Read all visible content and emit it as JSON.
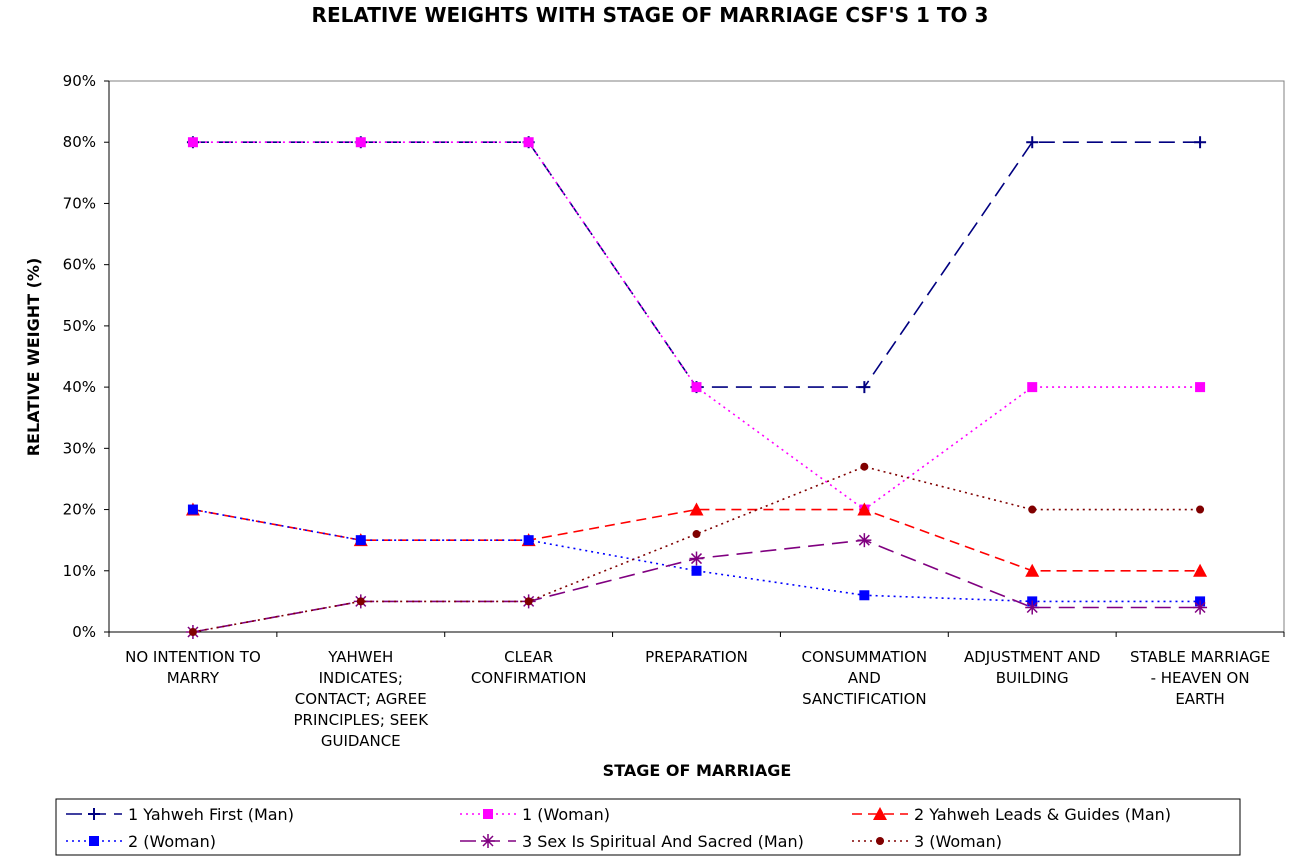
{
  "chart_data": {
    "type": "line",
    "title": "RELATIVE WEIGHTS WITH STAGE OF MARRIAGE CSF'S 1 TO 3",
    "xlabel": "STAGE OF MARRIAGE",
    "ylabel": "RELATIVE WEIGHT (%)",
    "ylim": [
      0,
      90
    ],
    "yticks": [
      "0%",
      "10%",
      "20%",
      "30%",
      "40%",
      "50%",
      "60%",
      "70%",
      "80%",
      "90%"
    ],
    "grid": false,
    "legend_position": "bottom",
    "categories": [
      [
        "NO INTENTION TO",
        "MARRY"
      ],
      [
        "YAHWEH",
        "INDICATES;",
        "CONTACT; AGREE",
        "PRINCIPLES; SEEK",
        "GUIDANCE"
      ],
      [
        "CLEAR",
        "CONFIRMATION"
      ],
      [
        "PREPARATION"
      ],
      [
        "CONSUMMATION",
        "AND",
        "SANCTIFICATION"
      ],
      [
        "ADJUSTMENT AND",
        "BUILDING"
      ],
      [
        "STABLE MARRIAGE",
        "- HEAVEN ON",
        "EARTH"
      ]
    ],
    "series": [
      {
        "name": "1 Yahweh First (Man)",
        "values": [
          80,
          80,
          80,
          40,
          40,
          80,
          80
        ],
        "color": "#000080",
        "dash": "long-dash",
        "marker": "plus"
      },
      {
        "name": "1 (Woman)",
        "values": [
          80,
          80,
          80,
          40,
          20,
          40,
          40
        ],
        "color": "#ff00ff",
        "dash": "dotted",
        "marker": "square"
      },
      {
        "name": "2 Yahweh Leads & Guides (Man)",
        "values": [
          20,
          15,
          15,
          20,
          20,
          10,
          10
        ],
        "color": "#ff0000",
        "dash": "dash",
        "marker": "triangle"
      },
      {
        "name": "2 (Woman)",
        "values": [
          20,
          15,
          15,
          10,
          6,
          5,
          5
        ],
        "color": "#0000ff",
        "dash": "dotted",
        "marker": "square"
      },
      {
        "name": "3 Sex Is Spiritual And Sacred (Man)",
        "values": [
          0,
          5,
          5,
          12,
          15,
          4,
          4
        ],
        "color": "#800080",
        "dash": "long-dash",
        "marker": "asterisk"
      },
      {
        "name": "3 (Woman)",
        "values": [
          0,
          5,
          5,
          16,
          27,
          20,
          20
        ],
        "color": "#800000",
        "dash": "dotted",
        "marker": "circle"
      }
    ]
  }
}
